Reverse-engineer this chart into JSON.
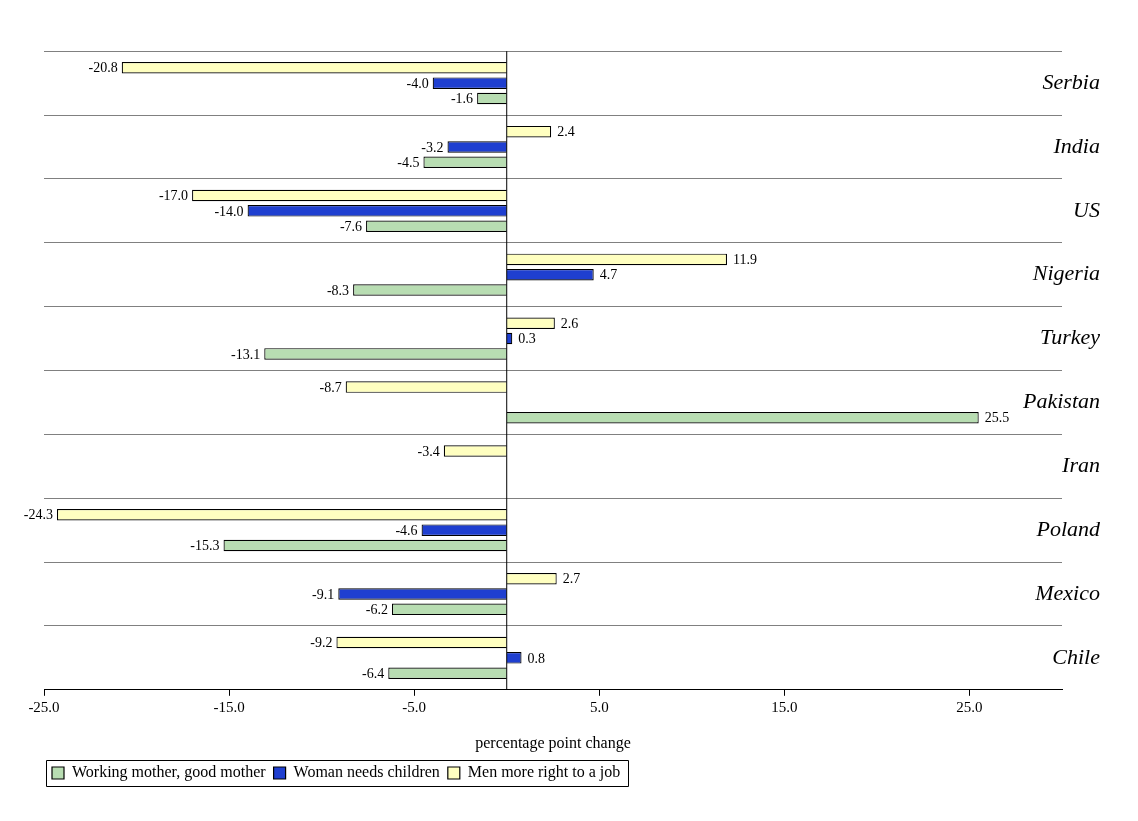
{
  "chart_data": {
    "type": "bar",
    "orientation": "horizontal",
    "xlabel": "percentage point change",
    "categories": [
      "Serbia",
      "India",
      "US",
      "Nigeria",
      "Turkey",
      "Pakistan",
      "Iran",
      "Poland",
      "Mexico",
      "Chile"
    ],
    "series": [
      {
        "name": "Working mother, good mother",
        "color": "#b8ddb2",
        "values": [
          -1.6,
          -4.5,
          -7.6,
          -8.3,
          -13.1,
          25.5,
          null,
          -15.3,
          -6.2,
          -6.4
        ],
        "value_labels": [
          "-1.6",
          "-4.5",
          "-7.6",
          "-8.3",
          "-13.1",
          "25.5",
          null,
          "-15.3",
          "-6.2",
          "-6.4"
        ]
      },
      {
        "name": "Woman needs children",
        "color": "#1f3fd0",
        "values": [
          -4.0,
          -3.2,
          -14.0,
          4.7,
          0.3,
          null,
          null,
          -4.6,
          -9.1,
          0.8
        ],
        "value_labels": [
          "-4.0",
          "-3.2",
          "-14.0",
          "4.7",
          "0.3",
          null,
          null,
          "-4.6",
          "-9.1",
          "0.8"
        ]
      },
      {
        "name": "Men more right to a job",
        "color": "#ffffc0",
        "values": [
          -20.8,
          2.4,
          -17.0,
          11.9,
          2.6,
          -8.7,
          -3.4,
          -24.3,
          2.7,
          -9.2
        ],
        "value_labels": [
          "-20.8",
          "2.4",
          "-17.0",
          "11.9",
          "2.6",
          "-8.7",
          "-3.4",
          "-24.3",
          "2.7",
          "-9.2"
        ]
      }
    ],
    "xlim": [
      -25,
      30
    ],
    "xticks": [
      {
        "value": -25,
        "label": "-25.0"
      },
      {
        "value": -15,
        "label": "-15.0"
      },
      {
        "value": -5,
        "label": "-5.0"
      },
      {
        "value": 5,
        "label": "5.0"
      },
      {
        "value": 15,
        "label": "15.0"
      },
      {
        "value": 25,
        "label": "25.0"
      }
    ],
    "grid": "y",
    "legend": "bottom"
  }
}
